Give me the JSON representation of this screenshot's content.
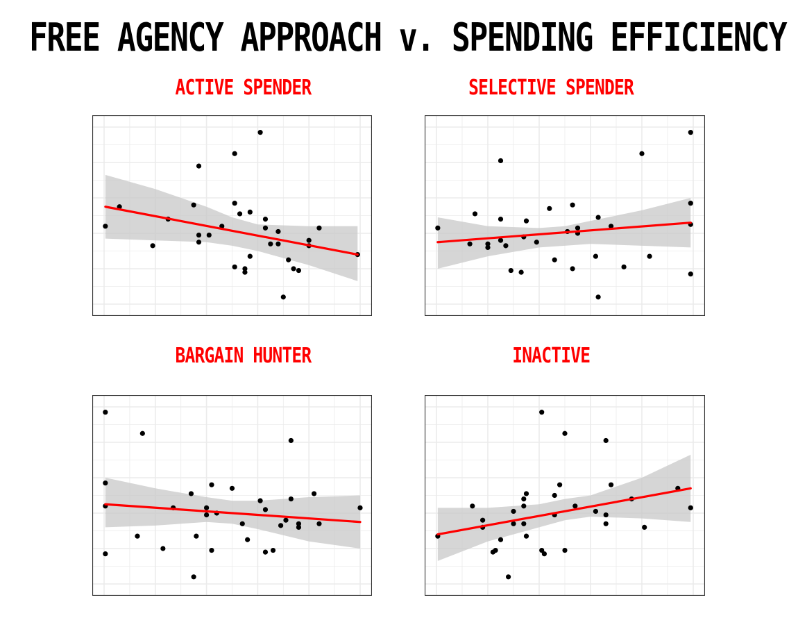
{
  "title": "FREE AGENCY APPROACH v. SPENDING EFFICIENCY",
  "colors": {
    "trend": "#ff0000",
    "band": "#c8c8c8",
    "point": "#000000",
    "grid": "#ebebeb",
    "title_accent": "#ff0000"
  },
  "chart_data": [
    {
      "type": "scatter",
      "title": "ACTIVE SPENDER",
      "xlabel": "",
      "ylabel": "",
      "xlim": [
        0,
        10
      ],
      "ylim": [
        0,
        10
      ],
      "grid": true,
      "legend": "none",
      "points": [
        [
          0.05,
          4.4
        ],
        [
          0.6,
          5.5
        ],
        [
          1.9,
          3.3
        ],
        [
          2.5,
          4.8
        ],
        [
          3.5,
          5.6
        ],
        [
          3.7,
          7.8
        ],
        [
          3.7,
          3.9
        ],
        [
          3.7,
          3.5
        ],
        [
          4.1,
          3.9
        ],
        [
          4.6,
          4.4
        ],
        [
          5.1,
          8.5
        ],
        [
          5.1,
          5.7
        ],
        [
          5.1,
          2.1
        ],
        [
          5.3,
          5.1
        ],
        [
          5.5,
          1.8
        ],
        [
          5.5,
          2.0
        ],
        [
          5.7,
          5.2
        ],
        [
          5.7,
          2.7
        ],
        [
          6.1,
          9.7
        ],
        [
          6.3,
          4.3
        ],
        [
          6.3,
          4.8
        ],
        [
          6.5,
          3.4
        ],
        [
          6.8,
          4.1
        ],
        [
          6.8,
          3.4
        ],
        [
          7.0,
          0.4
        ],
        [
          7.2,
          2.5
        ],
        [
          7.4,
          2.0
        ],
        [
          7.6,
          1.9
        ],
        [
          8.0,
          3.6
        ],
        [
          8.0,
          3.3
        ],
        [
          8.4,
          4.3
        ],
        [
          9.9,
          2.8
        ]
      ],
      "trend": {
        "x": [
          0.05,
          9.9
        ],
        "y": [
          5.5,
          2.8
        ]
      },
      "band": {
        "x": [
          0.05,
          2.0,
          4.0,
          5.0,
          6.0,
          8.0,
          9.9
        ],
        "lower": [
          3.7,
          3.6,
          3.5,
          3.3,
          3.0,
          2.2,
          1.3
        ],
        "upper": [
          7.3,
          6.5,
          5.5,
          4.9,
          4.5,
          4.4,
          4.4
        ]
      }
    },
    {
      "type": "scatter",
      "title": "SELECTIVE SPENDER",
      "xlabel": "",
      "ylabel": "",
      "xlim": [
        0,
        10
      ],
      "ylim": [
        0,
        10
      ],
      "grid": true,
      "legend": "none",
      "points": [
        [
          0.05,
          4.3
        ],
        [
          1.3,
          3.4
        ],
        [
          1.5,
          5.1
        ],
        [
          2.0,
          3.4
        ],
        [
          2.0,
          3.2
        ],
        [
          2.5,
          8.1
        ],
        [
          2.5,
          4.8
        ],
        [
          2.5,
          3.6
        ],
        [
          2.7,
          3.3
        ],
        [
          2.9,
          1.9
        ],
        [
          3.3,
          1.8
        ],
        [
          3.4,
          3.8
        ],
        [
          3.5,
          4.7
        ],
        [
          3.9,
          3.5
        ],
        [
          4.4,
          5.4
        ],
        [
          4.6,
          2.5
        ],
        [
          5.1,
          4.1
        ],
        [
          5.3,
          5.6
        ],
        [
          5.3,
          2.0
        ],
        [
          5.5,
          4.3
        ],
        [
          5.5,
          4.0
        ],
        [
          6.2,
          2.7
        ],
        [
          6.3,
          4.9
        ],
        [
          6.3,
          0.4
        ],
        [
          6.8,
          4.4
        ],
        [
          7.3,
          2.1
        ],
        [
          8.0,
          8.5
        ],
        [
          8.3,
          2.7
        ],
        [
          9.9,
          9.7
        ],
        [
          9.9,
          5.7
        ],
        [
          9.9,
          4.5
        ],
        [
          9.9,
          1.7
        ]
      ],
      "trend": {
        "x": [
          0.05,
          9.9
        ],
        "y": [
          3.5,
          4.6
        ]
      },
      "band": {
        "x": [
          0.05,
          2.0,
          4.0,
          5.0,
          6.0,
          8.0,
          9.9
        ],
        "lower": [
          2.0,
          2.7,
          3.2,
          3.3,
          3.4,
          3.3,
          3.2
        ],
        "upper": [
          4.9,
          4.4,
          4.3,
          4.4,
          4.7,
          5.3,
          6.0
        ]
      }
    },
    {
      "type": "scatter",
      "title": "BARGAIN HUNTER",
      "xlabel": "",
      "ylabel": "",
      "xlim": [
        0,
        10
      ],
      "ylim": [
        0,
        10
      ],
      "grid": true,
      "legend": "none",
      "points": [
        [
          0.05,
          9.7
        ],
        [
          0.05,
          5.7
        ],
        [
          0.05,
          4.4
        ],
        [
          0.05,
          1.7
        ],
        [
          1.3,
          2.7
        ],
        [
          1.5,
          8.5
        ],
        [
          2.3,
          2.0
        ],
        [
          2.7,
          4.3
        ],
        [
          3.4,
          5.1
        ],
        [
          3.5,
          0.4
        ],
        [
          3.6,
          2.7
        ],
        [
          4.0,
          4.3
        ],
        [
          4.0,
          3.9
        ],
        [
          4.2,
          1.9
        ],
        [
          4.2,
          5.6
        ],
        [
          4.4,
          4.0
        ],
        [
          5.0,
          5.4
        ],
        [
          5.4,
          3.4
        ],
        [
          5.6,
          2.5
        ],
        [
          6.1,
          4.7
        ],
        [
          6.3,
          4.2
        ],
        [
          6.3,
          1.8
        ],
        [
          6.6,
          1.9
        ],
        [
          6.9,
          3.3
        ],
        [
          7.1,
          3.6
        ],
        [
          7.3,
          4.8
        ],
        [
          7.3,
          8.1
        ],
        [
          7.6,
          3.4
        ],
        [
          7.6,
          3.2
        ],
        [
          8.2,
          5.1
        ],
        [
          8.4,
          3.4
        ],
        [
          10.0,
          4.3
        ]
      ],
      "trend": {
        "x": [
          0.05,
          10.0
        ],
        "y": [
          4.5,
          3.5
        ]
      },
      "band": {
        "x": [
          0.05,
          2.0,
          4.0,
          5.0,
          6.0,
          8.0,
          10.0
        ],
        "lower": [
          3.2,
          3.3,
          3.5,
          3.4,
          3.1,
          2.4,
          2.0
        ],
        "upper": [
          6.0,
          5.4,
          4.9,
          4.7,
          4.7,
          4.9,
          5.0
        ]
      }
    },
    {
      "type": "scatter",
      "title": "INACTIVE",
      "xlabel": "",
      "ylabel": "",
      "xlim": [
        0,
        10
      ],
      "ylim": [
        0,
        10
      ],
      "grid": true,
      "legend": "none",
      "points": [
        [
          0.05,
          2.7
        ],
        [
          1.4,
          4.4
        ],
        [
          1.8,
          3.6
        ],
        [
          1.8,
          3.2
        ],
        [
          2.2,
          1.8
        ],
        [
          2.3,
          1.9
        ],
        [
          2.5,
          2.5
        ],
        [
          2.8,
          0.4
        ],
        [
          3.0,
          4.1
        ],
        [
          3.0,
          3.4
        ],
        [
          3.4,
          4.8
        ],
        [
          3.4,
          3.4
        ],
        [
          3.4,
          4.4
        ],
        [
          3.5,
          5.1
        ],
        [
          3.5,
          2.7
        ],
        [
          4.1,
          9.7
        ],
        [
          4.1,
          1.9
        ],
        [
          4.2,
          1.7
        ],
        [
          4.6,
          3.9
        ],
        [
          4.6,
          5.0
        ],
        [
          4.8,
          5.6
        ],
        [
          5.0,
          8.5
        ],
        [
          5.0,
          1.9
        ],
        [
          5.4,
          4.4
        ],
        [
          6.2,
          4.1
        ],
        [
          6.6,
          3.9
        ],
        [
          6.6,
          3.4
        ],
        [
          6.6,
          8.1
        ],
        [
          6.8,
          5.6
        ],
        [
          7.6,
          4.8
        ],
        [
          8.1,
          3.2
        ],
        [
          9.4,
          5.4
        ],
        [
          9.9,
          4.3
        ]
      ],
      "trend": {
        "x": [
          0.05,
          9.9
        ],
        "y": [
          2.8,
          5.4
        ]
      },
      "band": {
        "x": [
          0.05,
          2.0,
          4.0,
          5.0,
          6.0,
          8.0,
          9.9
        ],
        "lower": [
          1.3,
          2.4,
          3.2,
          3.6,
          3.8,
          3.7,
          3.5
        ],
        "upper": [
          4.3,
          4.3,
          4.5,
          4.8,
          5.0,
          6.0,
          7.3
        ]
      }
    }
  ]
}
